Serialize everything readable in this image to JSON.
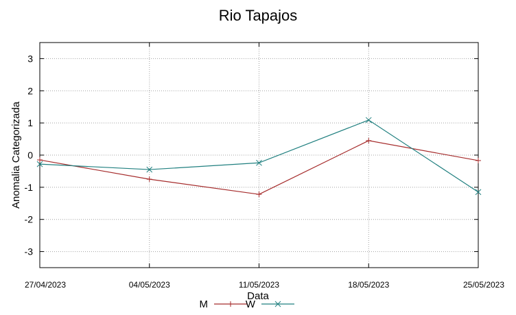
{
  "chart_data": {
    "type": "line",
    "title": "Rio Tapajos",
    "xlabel": "Data",
    "ylabel": "Anomalia Categorizada",
    "categories": [
      "27/04/2023",
      "04/05/2023",
      "11/05/2023",
      "18/05/2023",
      "25/05/2023"
    ],
    "ylim": [
      -3.5,
      3.5
    ],
    "yticks": [
      -3,
      -2,
      -1,
      0,
      1,
      2,
      3
    ],
    "grid": true,
    "legend_position": "bottom-center",
    "series": [
      {
        "name": "M",
        "color": "#a52a2a",
        "marker": "plus",
        "values": [
          -0.15,
          -0.75,
          -1.22,
          0.45,
          -0.17
        ]
      },
      {
        "name": "W",
        "color": "#1f7f7f",
        "marker": "cross",
        "values": [
          -0.28,
          -0.45,
          -0.24,
          1.09,
          -1.15
        ]
      }
    ]
  }
}
